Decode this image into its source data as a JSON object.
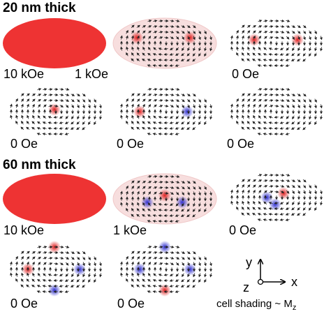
{
  "sections": [
    {
      "title": "20 nm thick",
      "panels": [
        {
          "label": "10 kOe"
        },
        {
          "label": "1 kOe"
        },
        {
          "label": "0 Oe"
        },
        {
          "label": "0 Oe"
        },
        {
          "label": "0 Oe"
        },
        {
          "label": "0 Oe"
        }
      ]
    },
    {
      "title": "60 nm thick",
      "panels": [
        {
          "label": "10 kOe"
        },
        {
          "label": "1 kOe"
        },
        {
          "label": "0 Oe"
        },
        {
          "label": "0 Oe"
        },
        {
          "label": "0 Oe"
        }
      ]
    }
  ],
  "legend": {
    "y": "y",
    "x": "x",
    "z": "z",
    "caption": "cell shading ~ M",
    "caption_sub": "z"
  }
}
